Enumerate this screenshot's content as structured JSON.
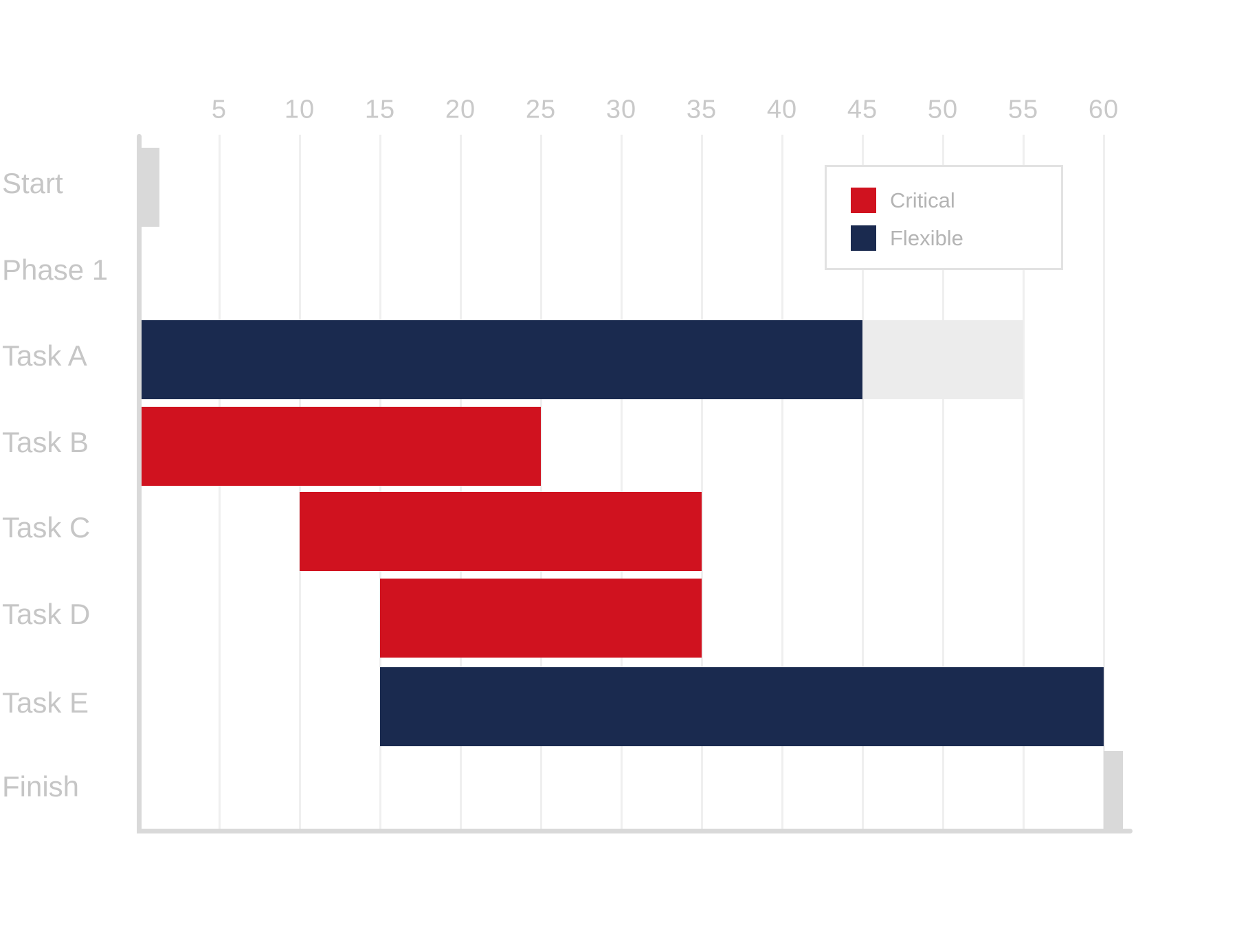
{
  "page": {
    "background": "#ffffff"
  },
  "chart_data": {
    "type": "bar",
    "subtype": "gantt",
    "orientation": "horizontal",
    "title": "",
    "x_axis": {
      "position": "top",
      "min": 0,
      "max": 61.7,
      "tick_interval": 5,
      "ticks": [
        5,
        10,
        15,
        20,
        25,
        30,
        35,
        40,
        45,
        50,
        55,
        60
      ],
      "grid": true
    },
    "categories": [
      "Start",
      "Phase 1",
      "Task A",
      "Task B",
      "Task C",
      "Task D",
      "Task E",
      "Finish"
    ],
    "rows": [
      {
        "category": "Start",
        "segments": [
          {
            "start": 0,
            "end": 1.3,
            "status": "milestone"
          }
        ]
      },
      {
        "category": "Phase 1",
        "segments": []
      },
      {
        "category": "Task A",
        "segments": [
          {
            "start": 0,
            "end": 45,
            "status": "flexible"
          },
          {
            "start": 45,
            "end": 55,
            "status": "slack"
          }
        ]
      },
      {
        "category": "Task B",
        "segments": [
          {
            "start": 0,
            "end": 25,
            "status": "critical"
          }
        ]
      },
      {
        "category": "Task C",
        "segments": [
          {
            "start": 10,
            "end": 35,
            "status": "critical"
          }
        ]
      },
      {
        "category": "Task D",
        "segments": [
          {
            "start": 15,
            "end": 35,
            "status": "critical"
          }
        ]
      },
      {
        "category": "Task E",
        "segments": [
          {
            "start": 15,
            "end": 60,
            "status": "flexible"
          }
        ]
      },
      {
        "category": "Finish",
        "segments": [
          {
            "start": 60,
            "end": 61.2,
            "status": "milestone"
          }
        ]
      }
    ],
    "status_colors": {
      "critical": "#d0121f",
      "flexible": "#1a2a4f",
      "milestone": "#d9d9d9",
      "slack": "#ececec"
    },
    "legend": {
      "position": "top-right",
      "items": [
        {
          "label": "Critical",
          "status": "critical"
        },
        {
          "label": "Flexible",
          "status": "flexible"
        }
      ]
    },
    "colors": {
      "axis_line": "#d9d9d9",
      "gridline": "#efefef",
      "tick_label": "#c9c9c9",
      "category_label": "#c6c6c6",
      "legend_text": "#b4b4b4",
      "legend_border": "#e2e2e2"
    }
  }
}
